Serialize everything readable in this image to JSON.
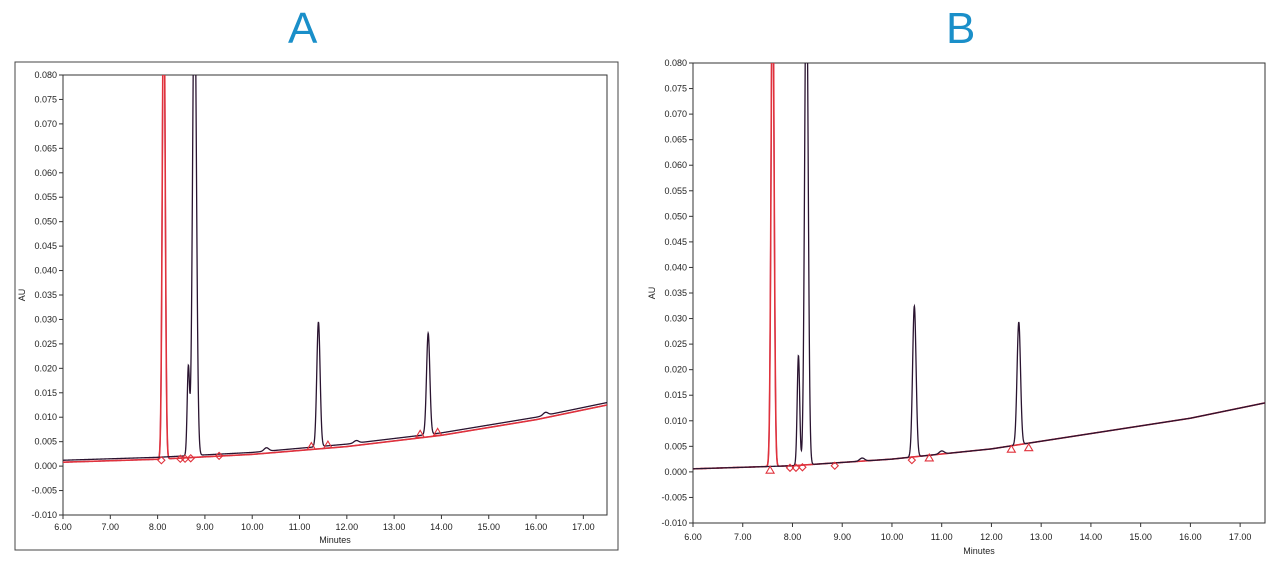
{
  "panels": {
    "a_label": "A",
    "b_label": "B"
  },
  "chart_data": [
    {
      "type": "line",
      "title": "A",
      "xlabel": "Minutes",
      "ylabel": "AU",
      "xlim": [
        6.0,
        17.5
      ],
      "ylim": [
        -0.01,
        0.08
      ],
      "xticks": [
        "6.00",
        "7.00",
        "8.00",
        "9.00",
        "10.00",
        "11.00",
        "12.00",
        "13.00",
        "14.00",
        "15.00",
        "16.00",
        "17.00"
      ],
      "yticks": [
        "-0.010",
        "-0.005",
        "0.000",
        "0.005",
        "0.010",
        "0.015",
        "0.020",
        "0.025",
        "0.030",
        "0.035",
        "0.040",
        "0.045",
        "0.050",
        "0.055",
        "0.060",
        "0.065",
        "0.070",
        "0.075",
        "0.080"
      ],
      "grid": false,
      "colors": {
        "dark": "#2a1430",
        "red": "#e0323c",
        "purple": "#9b3a8a",
        "marker": "#e0323c"
      },
      "series": [
        {
          "baseline": [
            [
              6.0,
              0.0012
            ],
            [
              8.0,
              0.0018
            ],
            [
              10.0,
              0.0028
            ],
            [
              12.0,
              0.0045
            ],
            [
              14.0,
              0.0068
            ],
            [
              16.0,
              0.01
            ],
            [
              17.5,
              0.013
            ]
          ],
          "peaks": [
            [
              8.65,
              0.018,
              0.025
            ],
            [
              8.78,
              0.1,
              0.04
            ],
            [
              11.4,
              0.0255,
              0.035
            ],
            [
              13.72,
              0.0207,
              0.035
            ],
            [
              10.3,
              0.0007,
              0.05
            ],
            [
              12.2,
              0.0005,
              0.05
            ],
            [
              16.2,
              0.0006,
              0.05
            ]
          ]
        },
        {
          "baseline": [
            [
              6.0,
              0.0008
            ],
            [
              8.0,
              0.0014
            ],
            [
              10.0,
              0.0024
            ],
            [
              12.0,
              0.004
            ],
            [
              14.0,
              0.0063
            ],
            [
              16.0,
              0.0095
            ],
            [
              17.5,
              0.0125
            ]
          ],
          "peaks": [
            [
              8.13,
              0.1,
              0.03
            ]
          ]
        }
      ],
      "markers": {
        "diamonds": [
          [
            8.08,
            0.0012
          ],
          [
            8.48,
            0.0015
          ],
          [
            8.58,
            0.0015
          ],
          [
            8.7,
            0.0016
          ],
          [
            9.3,
            0.0021
          ]
        ],
        "triangles": [
          [
            11.25,
            0.004
          ],
          [
            11.6,
            0.0043
          ],
          [
            13.55,
            0.0065
          ],
          [
            13.92,
            0.0069
          ]
        ]
      }
    },
    {
      "type": "line",
      "title": "B",
      "xlabel": "Minutes",
      "ylabel": "AU",
      "xlim": [
        6.0,
        17.5
      ],
      "ylim": [
        -0.01,
        0.08
      ],
      "xticks": [
        "6.00",
        "7.00",
        "8.00",
        "9.00",
        "10.00",
        "11.00",
        "12.00",
        "13.00",
        "14.00",
        "15.00",
        "16.00",
        "17.00"
      ],
      "yticks": [
        "-0.010",
        "-0.005",
        "0.000",
        "0.005",
        "0.010",
        "0.015",
        "0.020",
        "0.025",
        "0.030",
        "0.035",
        "0.040",
        "0.045",
        "0.050",
        "0.055",
        "0.060",
        "0.065",
        "0.070",
        "0.075",
        "0.080"
      ],
      "grid": false,
      "colors": {
        "dark": "#2a1430",
        "red": "#e0323c",
        "purple": "#9b3a8a",
        "marker": "#e0323c"
      },
      "series": [
        {
          "baseline": [
            [
              6.0,
              0.0006
            ],
            [
              8.0,
              0.0012
            ],
            [
              10.0,
              0.0025
            ],
            [
              12.0,
              0.0045
            ],
            [
              14.0,
              0.0075
            ],
            [
              16.0,
              0.0105
            ],
            [
              17.5,
              0.0135
            ]
          ],
          "peaks": [
            [
              8.12,
              0.0215,
              0.025
            ],
            [
              8.28,
              0.1,
              0.035
            ],
            [
              10.45,
              0.0295,
              0.035
            ],
            [
              12.55,
              0.024,
              0.035
            ],
            [
              9.4,
              0.0006,
              0.05
            ],
            [
              11.0,
              0.0006,
              0.05
            ]
          ]
        },
        {
          "baseline": [
            [
              6.0,
              0.0006
            ],
            [
              8.0,
              0.0012
            ],
            [
              10.0,
              0.0025
            ],
            [
              12.0,
              0.0045
            ],
            [
              14.0,
              0.0075
            ],
            [
              16.0,
              0.0105
            ],
            [
              17.5,
              0.0135
            ]
          ],
          "peaks": [
            [
              7.6,
              0.1,
              0.03
            ]
          ]
        }
      ],
      "markers": {
        "diamonds": [
          [
            7.95,
            0.0008
          ],
          [
            8.07,
            0.0008
          ],
          [
            8.2,
            0.0009
          ],
          [
            8.85,
            0.0012
          ],
          [
            10.4,
            0.0023
          ]
        ],
        "triangles": [
          [
            7.55,
            0.0003
          ],
          [
            10.75,
            0.0027
          ],
          [
            12.4,
            0.0044
          ],
          [
            12.75,
            0.0047
          ]
        ]
      }
    }
  ]
}
